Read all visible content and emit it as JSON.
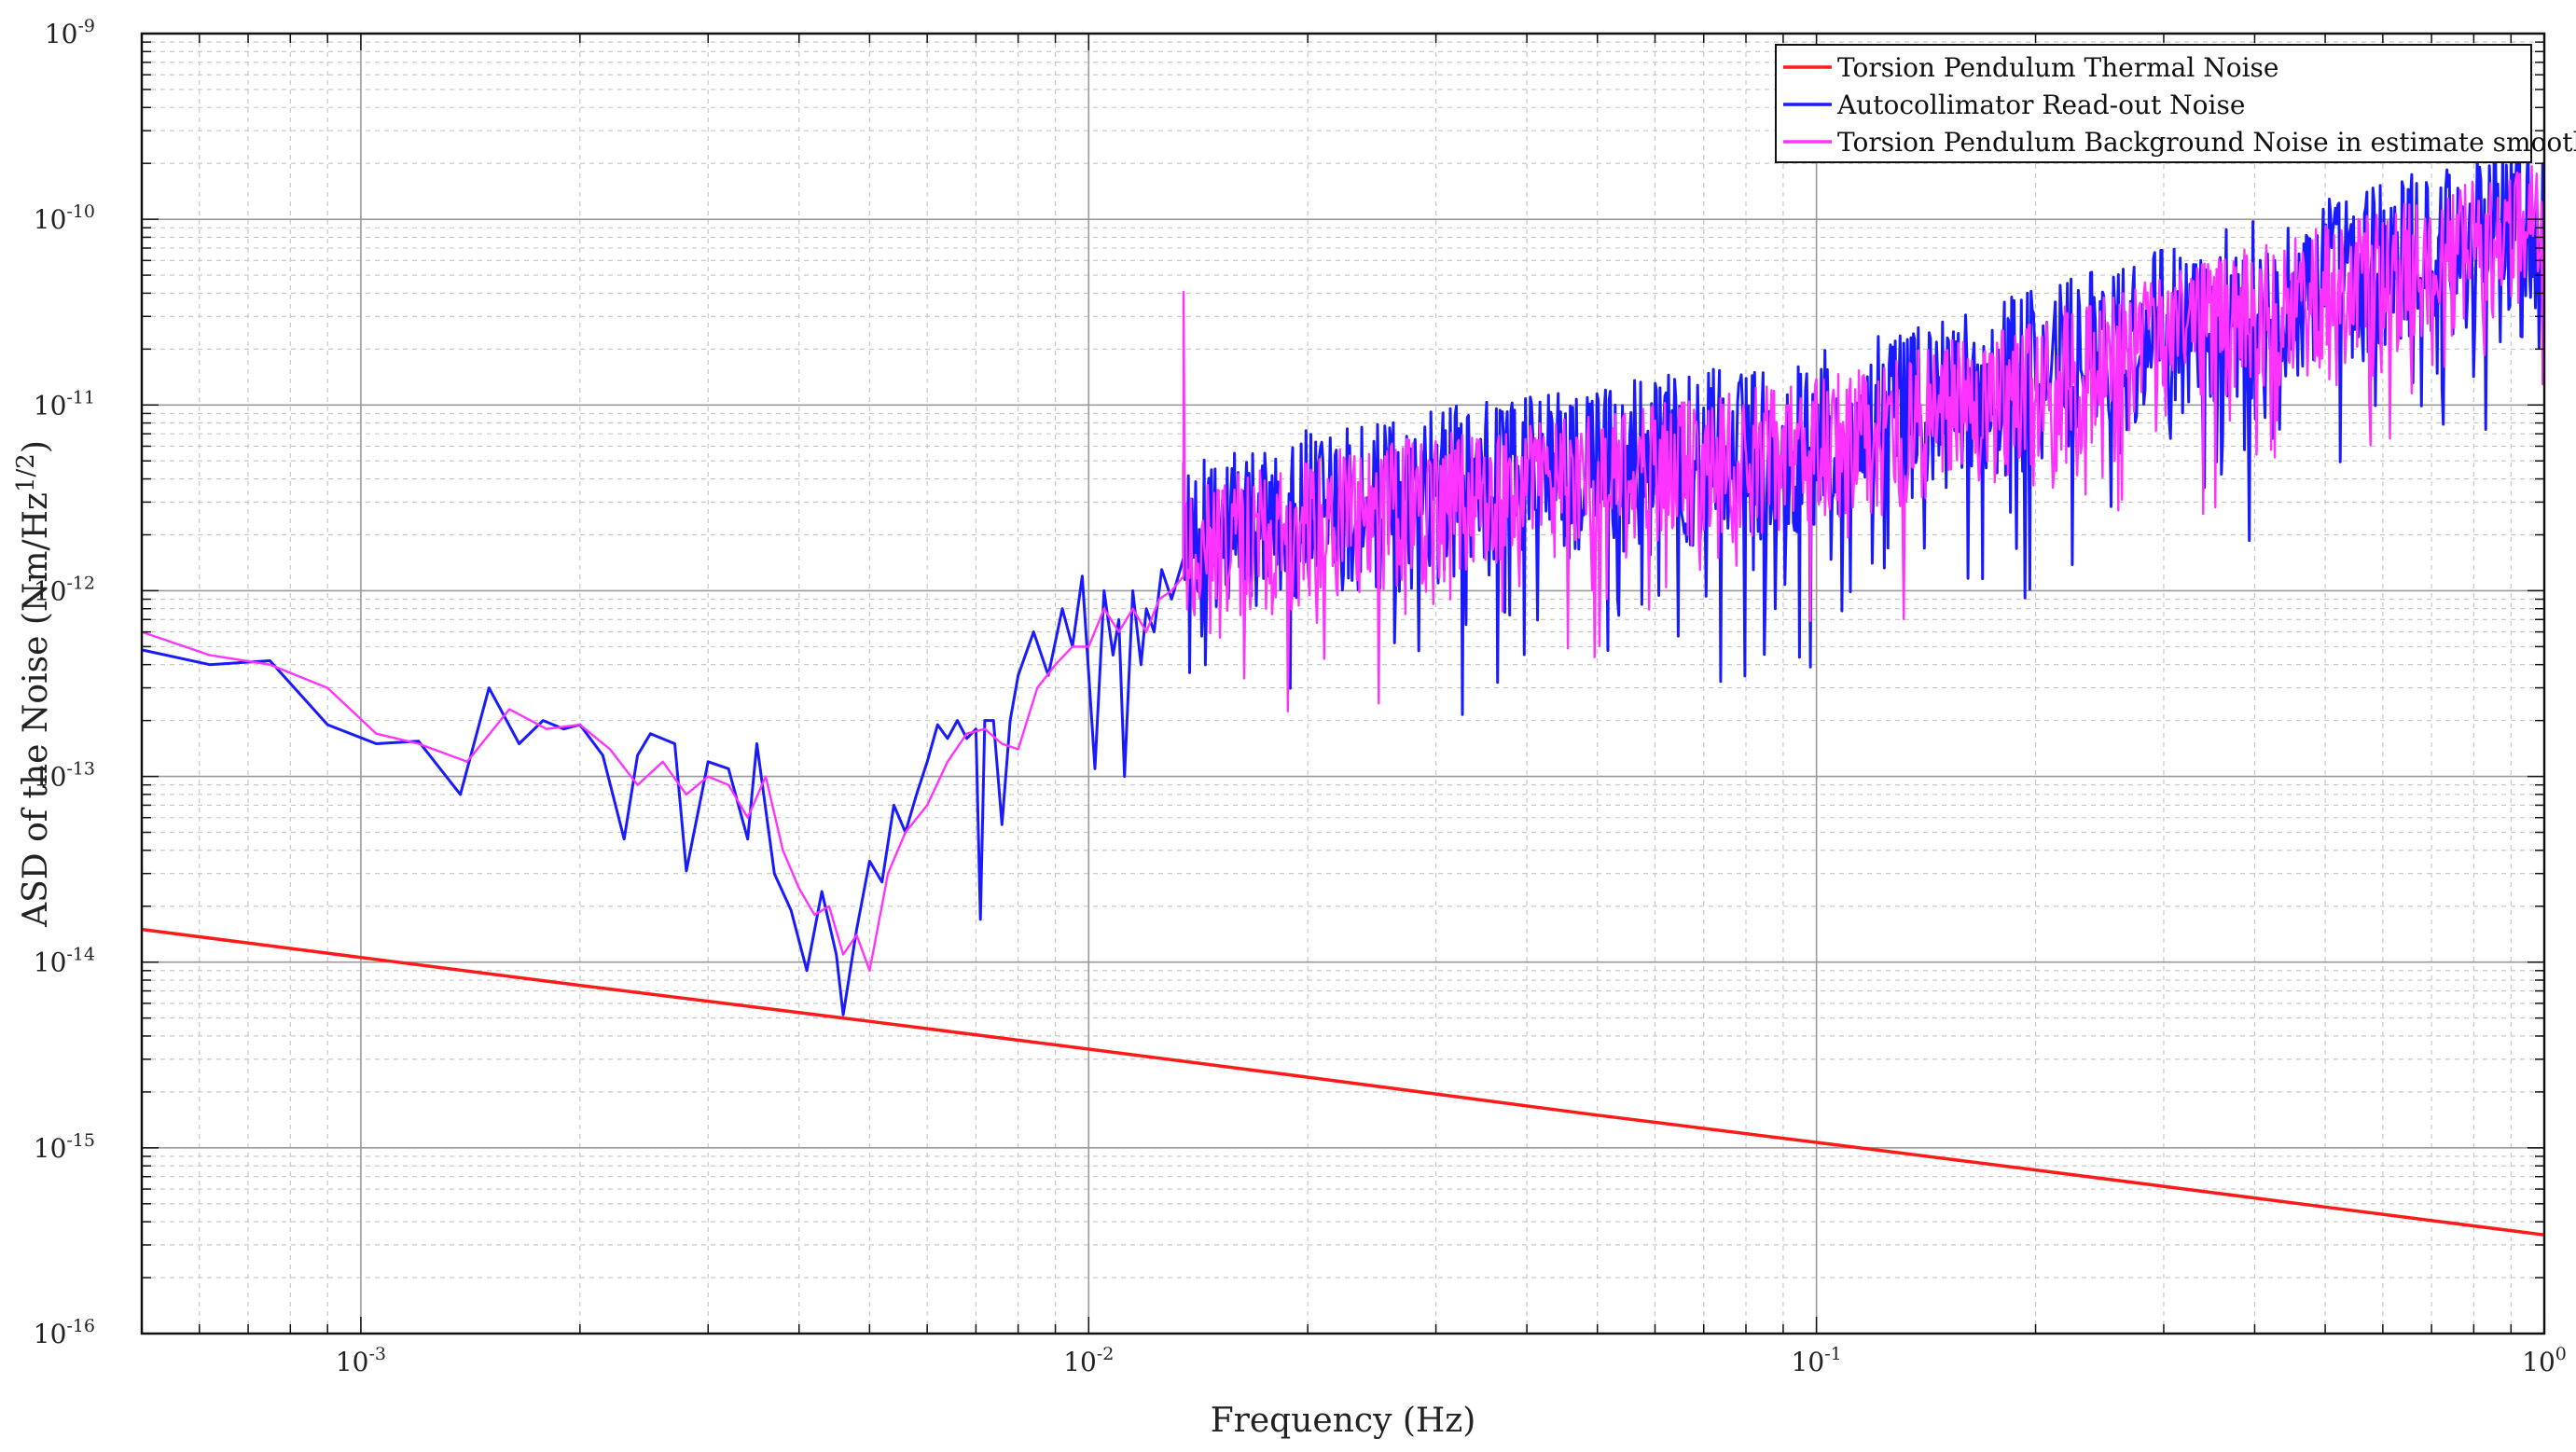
{
  "chart_data": {
    "type": "line",
    "title": "",
    "xlabel": "Frequency (Hz)",
    "ylabel_text": "ASD of the Noise (Nm/Hz",
    "ylabel_exp": "1/2",
    "ylabel_close": ")",
    "x_scale": "log",
    "y_scale": "log",
    "xlim": [
      0.0005,
      1
    ],
    "ylim": [
      1e-16,
      1e-09
    ],
    "grid": true,
    "legend_position": "top-right",
    "x_ticks": [
      {
        "value": 0.001,
        "base": "10",
        "exp": "-3"
      },
      {
        "value": 0.01,
        "base": "10",
        "exp": "-2"
      },
      {
        "value": 0.1,
        "base": "10",
        "exp": "-1"
      },
      {
        "value": 1,
        "base": "10",
        "exp": "0"
      }
    ],
    "y_ticks": [
      {
        "value": 1e-09,
        "base": "10",
        "exp": "-9"
      },
      {
        "value": 1e-10,
        "base": "10",
        "exp": "-10"
      },
      {
        "value": 1e-11,
        "base": "10",
        "exp": "-11"
      },
      {
        "value": 1e-12,
        "base": "10",
        "exp": "-12"
      },
      {
        "value": 1e-13,
        "base": "10",
        "exp": "-13"
      },
      {
        "value": 1e-14,
        "base": "10",
        "exp": "-14"
      },
      {
        "value": 1e-15,
        "base": "10",
        "exp": "-15"
      },
      {
        "value": 1e-16,
        "base": "10",
        "exp": "-16"
      }
    ],
    "series": [
      {
        "name": "Torsion Pendulum Thermal Noise",
        "color": "#ff1a1a",
        "x": [
          0.0005,
          0.001,
          0.002,
          0.005,
          0.01,
          0.02,
          0.05,
          0.1,
          0.2,
          0.5,
          1
        ],
        "y": [
          1.5e-14,
          1.06e-14,
          7.5e-15,
          4.8e-15,
          3.4e-15,
          2.4e-15,
          1.5e-15,
          1.07e-15,
          7.6e-16,
          4.8e-16,
          3.4e-16
        ]
      },
      {
        "name": "Autocollimator Read-out Noise",
        "color": "#1a1aff",
        "x": [
          0.0005,
          0.00062,
          0.00075,
          0.0009,
          0.00105,
          0.0012,
          0.00137,
          0.0015,
          0.00165,
          0.00178,
          0.0019,
          0.002,
          0.00215,
          0.0023,
          0.0024,
          0.0025,
          0.0027,
          0.0028,
          0.003,
          0.0032,
          0.0034,
          0.0035,
          0.0037,
          0.0039,
          0.0041,
          0.0043,
          0.0045,
          0.0046,
          0.0048,
          0.005,
          0.0052,
          0.0054,
          0.0056,
          0.0058,
          0.006,
          0.0062,
          0.0064,
          0.0066,
          0.0068,
          0.007,
          0.0071,
          0.0072,
          0.0074,
          0.0076,
          0.0078,
          0.008,
          0.0084,
          0.0088,
          0.0092,
          0.0095,
          0.0098,
          0.0102,
          0.0105,
          0.0108,
          0.011,
          0.0112,
          0.0115,
          0.0118,
          0.012,
          0.0123,
          0.0126,
          0.013,
          0.0135
        ],
        "y": [
          4.8e-13,
          4e-13,
          4.2e-13,
          1.9e-13,
          1.5e-13,
          1.55e-13,
          8e-14,
          3e-13,
          1.5e-13,
          2e-13,
          1.8e-13,
          1.9e-13,
          1.3e-13,
          4.6e-14,
          1.3e-13,
          1.7e-13,
          1.5e-13,
          3.1e-14,
          1.2e-13,
          1.1e-13,
          4.6e-14,
          1.5e-13,
          3e-14,
          1.9e-14,
          9e-15,
          2.4e-14,
          1.1e-14,
          5.2e-15,
          1.5e-14,
          3.5e-14,
          2.7e-14,
          7e-14,
          5e-14,
          8e-14,
          1.2e-13,
          1.9e-13,
          1.6e-13,
          2e-13,
          1.6e-13,
          1.8e-13,
          1.7e-14,
          2e-13,
          2e-13,
          5.5e-14,
          2e-13,
          3.5e-13,
          6e-13,
          3.5e-13,
          8e-13,
          5e-13,
          1.2e-12,
          1.1e-13,
          1e-12,
          4.5e-13,
          7e-13,
          1e-13,
          1e-12,
          4e-13,
          8e-13,
          6e-13,
          1.3e-12,
          9e-13,
          1.5e-12
        ]
      },
      {
        "name": "Torsion Pendulum Background Noise in estimate smoothed",
        "color": "#ff33ff",
        "x": [
          0.0005,
          0.00062,
          0.00075,
          0.0009,
          0.00105,
          0.0012,
          0.0014,
          0.0016,
          0.0018,
          0.002,
          0.0022,
          0.0024,
          0.0026,
          0.0028,
          0.003,
          0.0032,
          0.0034,
          0.0036,
          0.0038,
          0.004,
          0.0042,
          0.0044,
          0.0046,
          0.0048,
          0.005,
          0.0053,
          0.0056,
          0.006,
          0.0064,
          0.0068,
          0.0072,
          0.0076,
          0.008,
          0.0085,
          0.009,
          0.0095,
          0.01,
          0.0105,
          0.011,
          0.0115,
          0.012,
          0.0125,
          0.013,
          0.0135
        ],
        "y": [
          6e-13,
          4.5e-13,
          4e-13,
          3e-13,
          1.7e-13,
          1.5e-13,
          1.2e-13,
          2.3e-13,
          1.8e-13,
          1.9e-13,
          1.4e-13,
          9e-14,
          1.2e-13,
          8e-14,
          1e-13,
          9e-14,
          6e-14,
          1e-13,
          4e-14,
          2.5e-14,
          1.8e-14,
          2e-14,
          1.1e-14,
          1.4e-14,
          9e-15,
          3e-14,
          5e-14,
          7e-14,
          1.2e-13,
          1.7e-13,
          1.8e-13,
          1.5e-13,
          1.4e-13,
          3e-13,
          4e-13,
          5e-13,
          5e-13,
          8e-13,
          6e-13,
          8e-13,
          6e-13,
          9e-13,
          1e-12,
          1.2e-12
        ]
      }
    ],
    "noise_trend": {
      "x": [
        0.0135,
        0.02,
        0.03,
        0.05,
        0.1,
        0.2,
        0.3,
        0.5,
        0.7,
        1
      ],
      "center": [
        1.5e-12,
        2.4e-12,
        3e-12,
        4e-12,
        6e-12,
        1.3e-11,
        2.2e-11,
        4e-11,
        6e-11,
        9e-11
      ],
      "dip_floor_ratio": 0.05,
      "peak_ratio": 3.2
    }
  }
}
